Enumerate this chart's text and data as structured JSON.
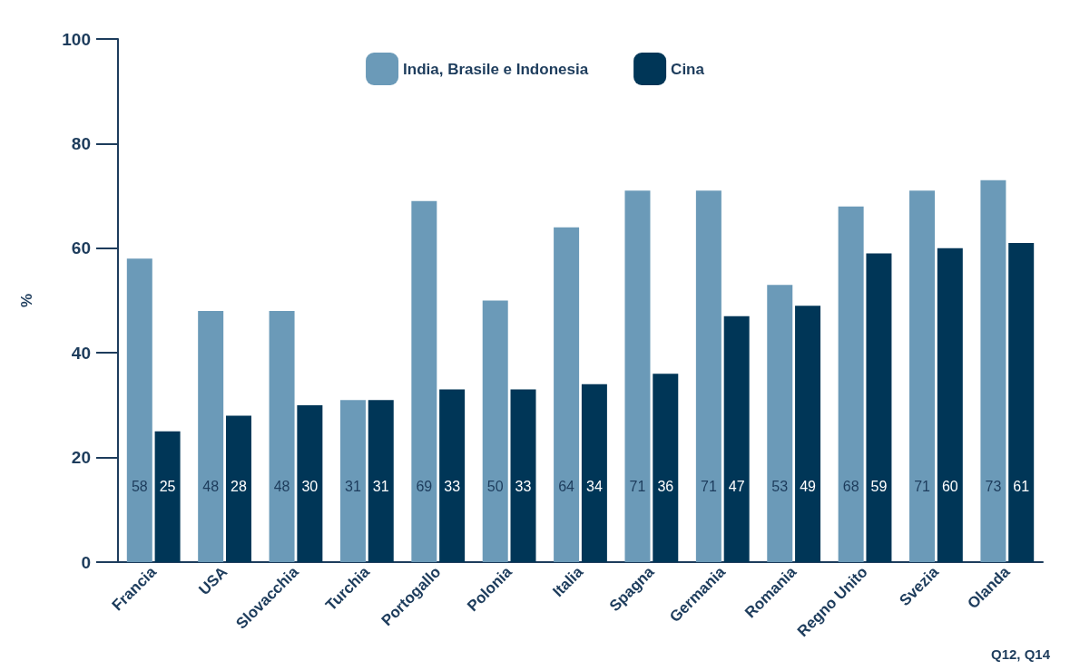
{
  "chart_data": {
    "type": "bar",
    "ylabel": "%",
    "categories": [
      "Francia",
      "USA",
      "Slovacchia",
      "Turchia",
      "Portogallo",
      "Polonia",
      "Italia",
      "Spagna",
      "Germania",
      "Romania",
      "Regno Unito",
      "Svezia",
      "Olanda"
    ],
    "series": [
      {
        "name": "India, Brasile e Indonesia",
        "color": "#6b9ab8",
        "values": [
          58,
          48,
          48,
          31,
          69,
          50,
          64,
          71,
          71,
          53,
          68,
          71,
          73
        ]
      },
      {
        "name": "Cina",
        "color": "#003657",
        "values": [
          25,
          28,
          30,
          31,
          33,
          33,
          34,
          36,
          47,
          49,
          59,
          60,
          61
        ]
      }
    ],
    "ylim": [
      0,
      100
    ],
    "yticks": [
      0,
      20,
      40,
      60,
      80,
      100
    ],
    "grid": false,
    "legend": "top",
    "data_labels": true,
    "annotations": [
      "Q12, Q14"
    ]
  }
}
